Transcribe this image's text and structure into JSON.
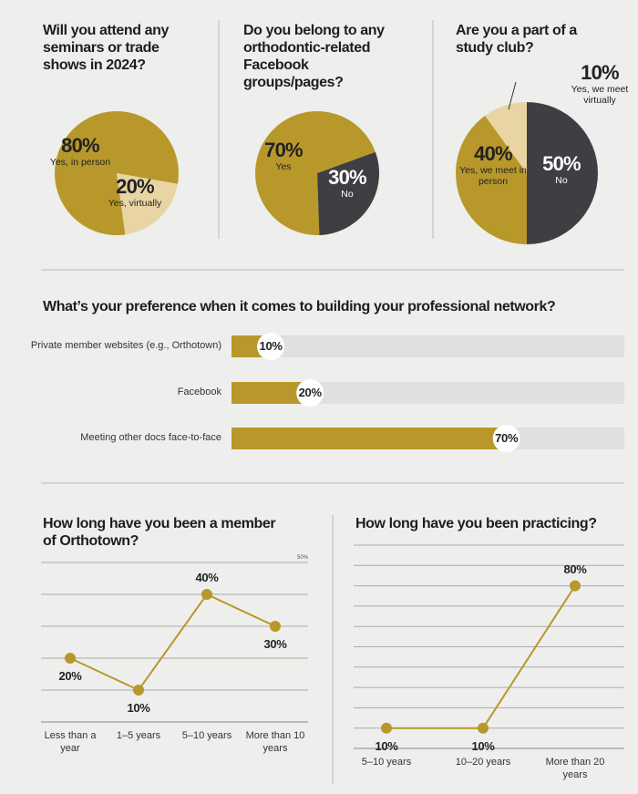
{
  "chart_data": [
    {
      "type": "pie",
      "title": "Will you attend any seminars or trade shows in 2024?",
      "categories": [
        "Yes, in person",
        "Yes, virtually"
      ],
      "values": [
        80,
        20
      ],
      "value_labels": [
        "80%",
        "20%"
      ],
      "colors": [
        "#b8982a",
        "#e8d5a3"
      ]
    },
    {
      "type": "pie",
      "title": "Do you belong to any orthodontic-related Facebook groups/pages?",
      "categories": [
        "Yes",
        "No"
      ],
      "values": [
        70,
        30
      ],
      "value_labels": [
        "70%",
        "30%"
      ],
      "colors": [
        "#b8982a",
        "#3f3e42"
      ]
    },
    {
      "type": "pie",
      "title": "Are you a part of a study club?",
      "categories": [
        "No",
        "Yes, we meet in person",
        "Yes, we meet virtually"
      ],
      "values": [
        50,
        40,
        10
      ],
      "value_labels": [
        "50%",
        "40%",
        "10%"
      ],
      "colors": [
        "#3f3e42",
        "#b8982a",
        "#e8d5a3"
      ]
    },
    {
      "type": "bar",
      "title": "What’s your preference when it comes to building your professional network?",
      "categories": [
        "Private member websites (e.g., Orthotown)",
        "Facebook",
        "Meeting other docs face-to-face"
      ],
      "values": [
        10,
        20,
        70
      ],
      "value_labels": [
        "10%",
        "20%",
        "70%"
      ],
      "color": "#b8982a",
      "xlim": [
        0,
        100
      ]
    },
    {
      "type": "line",
      "title": "How long have you been a member of Orthotown?",
      "categories": [
        "Less than a year",
        "1–5 years",
        "5–10 years",
        "More than 10 years"
      ],
      "values": [
        20,
        10,
        40,
        30
      ],
      "value_labels": [
        "20%",
        "10%",
        "40%",
        "30%"
      ],
      "color": "#b8982a",
      "ylim": [
        0,
        50
      ],
      "yticks": [
        {
          "value": 0,
          "label": null
        },
        {
          "value": 10,
          "label": null
        },
        {
          "value": 20,
          "label": null
        },
        {
          "value": 30,
          "label": null
        },
        {
          "value": 40,
          "label": null
        },
        {
          "value": 50,
          "label": "50%"
        }
      ],
      "grid": true
    },
    {
      "type": "line",
      "title": "How long have you been practicing?",
      "categories": [
        "5–10 years",
        "10–20 years",
        "More than 20 years"
      ],
      "values": [
        10,
        10,
        80
      ],
      "value_labels": [
        "10%",
        "10%",
        "80%"
      ],
      "color": "#b8982a",
      "ylim": [
        0,
        100
      ],
      "yticks": [
        {
          "value": 0,
          "label": null
        },
        {
          "value": 10,
          "label": null
        },
        {
          "value": 20,
          "label": null
        },
        {
          "value": 30,
          "label": null
        },
        {
          "value": 40,
          "label": null
        },
        {
          "value": 50,
          "label": null
        },
        {
          "value": 60,
          "label": null
        },
        {
          "value": 70,
          "label": null
        },
        {
          "value": 80,
          "label": null
        },
        {
          "value": 90,
          "label": null
        },
        {
          "value": 100,
          "label": null
        }
      ],
      "grid": true
    }
  ]
}
